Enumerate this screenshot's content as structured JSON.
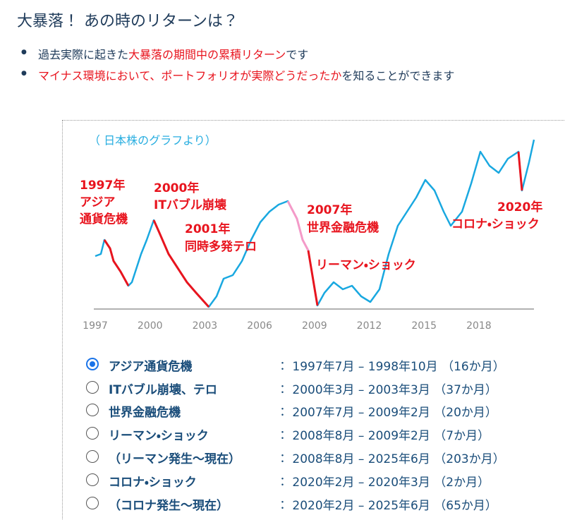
{
  "header": {
    "title": "大暴落！ あの時のリターンは？"
  },
  "bullets": [
    [
      "過去実際に起きた",
      "大暴落の期間中の累積リターン",
      "です"
    ],
    [
      "マイナス環境において、ポートフォリオが実際どうだったか",
      "を知ることができます"
    ]
  ],
  "chart": {
    "note": "（ 日本株のグラフより）",
    "xticks": [
      "1997",
      "2000",
      "2003",
      "2006",
      "2009",
      "2012",
      "2015",
      "2018"
    ],
    "annotations": [
      [
        "1997年",
        "アジア",
        "通貨危機"
      ],
      [
        "2000年",
        "ITバブル崩壊"
      ],
      [
        "2001年",
        "同時多発テロ"
      ],
      [
        "2007年",
        "世界金融危機"
      ],
      [
        "リーマン・ショック"
      ],
      [
        "2020年",
        "コロナ・ショック"
      ]
    ]
  },
  "options": [
    {
      "label": "アジア通貨危機",
      "period": "：  1997年7月 – 1998年10月 （16か月）"
    },
    {
      "label": "ITバブル崩壊、テロ",
      "period": "：  2000年3月 – 2003年3月 （37か月）"
    },
    {
      "label": "世界金融危機",
      "period": "：  2007年7月 – 2009年2月 （20か月）"
    },
    {
      "label": "リーマン・ショック",
      "period": "：  2008年8月 – 2009年2月 （7か月）"
    },
    {
      "label": "（リーマン発生～現在）",
      "period": "：  2008年8月 – 2025年6月 （203か月）"
    },
    {
      "label": "コロナ・ショック",
      "period": "：  2020年2月 – 2020年3月 （2か月）"
    },
    {
      "label": "（コロナ発生～現在）",
      "period": "：  2020年2月 – 2025年6月 （65か月）"
    }
  ]
}
